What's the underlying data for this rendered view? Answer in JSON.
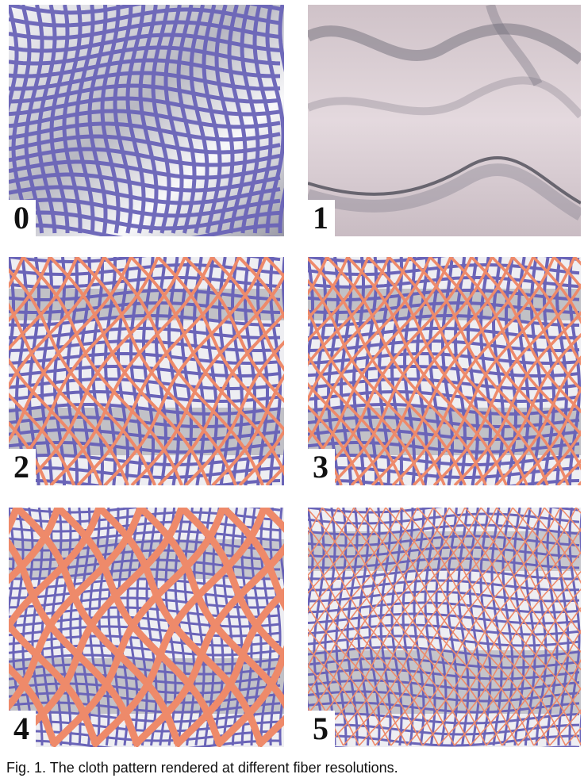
{
  "panels": [
    {
      "label": "0"
    },
    {
      "label": "1"
    },
    {
      "label": "2"
    },
    {
      "label": "3"
    },
    {
      "label": "4"
    },
    {
      "label": "5"
    }
  ],
  "caption": "Fig. 1. The cloth pattern rendered at different fiber resolutions.",
  "colors": {
    "blue_thread": "#6a64b8",
    "orange_thread": "#ee8a6a",
    "cloth_surface": "#d9cdd3",
    "shadow": "#5c5c66"
  }
}
